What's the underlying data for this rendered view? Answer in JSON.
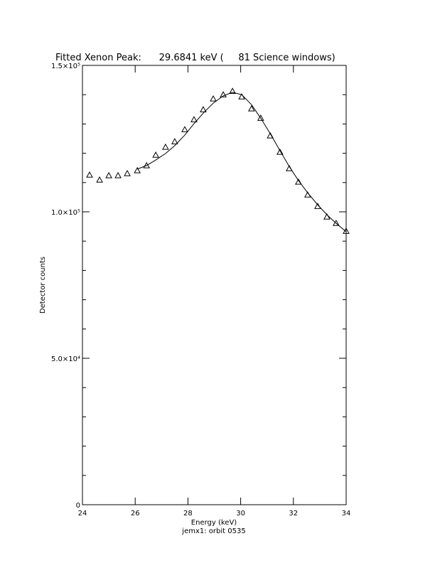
{
  "chart_data": {
    "type": "scatter",
    "title": "Fitted Xenon Peak:      29.6841 keV (     81 Science windows)",
    "x_label": "Energy (keV)",
    "y_label": "Detector counts",
    "subtitle": "jemx1: orbit 0535",
    "xlim": [
      24,
      34
    ],
    "ylim": [
      0,
      150000
    ],
    "xticks": [
      24,
      26,
      28,
      30,
      32,
      34
    ],
    "yticks": [
      0,
      {
        "value": 50000,
        "label": "5.0×10⁴"
      },
      {
        "value": 100000,
        "label": "1.0×10⁵"
      },
      {
        "value": 150000,
        "label": "1.5×10⁵"
      }
    ],
    "yminorticks": [
      10000,
      20000,
      30000,
      40000,
      60000,
      70000,
      80000,
      90000,
      110000,
      120000,
      130000,
      140000
    ],
    "series": [
      {
        "kind": "points",
        "marker": "triangle",
        "color": "#000000",
        "x": [
          24.27,
          24.65,
          25.0,
          25.35,
          25.7,
          26.08,
          26.43,
          26.78,
          27.15,
          27.5,
          27.88,
          28.23,
          28.58,
          28.96,
          29.34,
          29.69,
          30.04,
          30.41,
          30.76,
          31.12,
          31.49,
          31.84,
          32.19,
          32.54,
          32.92,
          33.27,
          33.62,
          34.0
        ],
        "values": [
          112600,
          110900,
          112400,
          112400,
          113100,
          114100,
          115800,
          119400,
          122100,
          124000,
          128100,
          131500,
          134900,
          138600,
          140000,
          141200,
          139300,
          135200,
          132000,
          126000,
          120400,
          114800,
          110200,
          105800,
          101900,
          98300,
          96100,
          93400
        ]
      },
      {
        "kind": "line",
        "color": "#000000",
        "x": [
          26.08,
          26.43,
          26.78,
          27.15,
          27.5,
          27.88,
          28.23,
          28.58,
          28.96,
          29.34,
          29.69,
          30.04,
          30.41,
          30.76,
          31.12,
          31.49,
          31.84,
          32.19,
          32.54,
          32.92,
          33.27,
          33.62,
          34.0
        ],
        "values": [
          114600,
          115800,
          117700,
          119900,
          122600,
          126200,
          130100,
          133700,
          137100,
          139600,
          140800,
          140000,
          136600,
          132000,
          126700,
          120900,
          115500,
          110700,
          106500,
          102400,
          99000,
          96100,
          93200
        ]
      }
    ]
  }
}
